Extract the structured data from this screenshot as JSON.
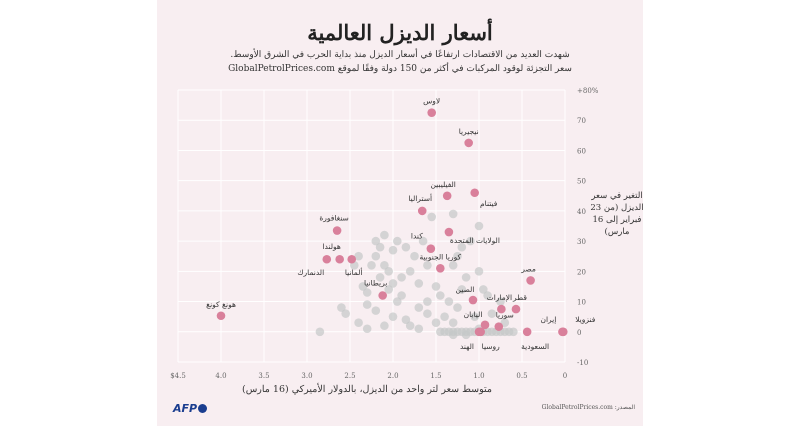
{
  "title": "أسعار الديزل العالمية",
  "subtitle_line1": "شهدت العديد من الاقتصادات ارتفاعًا في أسعار الديزل منذ بداية الحرب في الشرق الأوسط.",
  "subtitle_line2": "سعر التجزئة لوقود المركبات في أكثر من 150 دولة وفقًا لموقع GlobalPetrolPrices.com",
  "source": "المصدر: GlobalPetrolPrices.com",
  "logo": "AFP",
  "colors": {
    "background": "#f8eef1",
    "highlight": "#d9809b",
    "other": "#c4c7c7",
    "grid": "#ffffff"
  },
  "chart_data": {
    "type": "scatter",
    "xlabel": "متوسط سعر لتر واحد من الديزل، بالدولار الأميركي (16 مارس)",
    "ylabel": "التغير في سعر الديزل (من 23 فبراير إلى 16 مارس)",
    "xlim": [
      4.5,
      0
    ],
    "ylim": [
      -10,
      80
    ],
    "x_reversed": true,
    "grid": true,
    "x_ticks": [
      "$4.5",
      "4.0",
      "3.5",
      "3.0",
      "2.5",
      "2.0",
      "1.5",
      "1.0",
      "0.5",
      "0"
    ],
    "x_tick_values": [
      4.5,
      4.0,
      3.5,
      3.0,
      2.5,
      2.0,
      1.5,
      1.0,
      0.5,
      0
    ],
    "y_ticks": [
      "+80%",
      "70",
      "60",
      "50",
      "40",
      "30",
      "20",
      "10",
      "0",
      "-10"
    ],
    "y_tick_values": [
      80,
      70,
      60,
      50,
      40,
      30,
      20,
      10,
      0,
      -10
    ],
    "highlighted": [
      {
        "label": "لاوس",
        "x": 1.55,
        "y": 72.5
      },
      {
        "label": "نيجيريا",
        "x": 1.12,
        "y": 62.5
      },
      {
        "label": "الفيليبين",
        "x": 1.37,
        "y": 45
      },
      {
        "label": "فيتنام",
        "x": 1.05,
        "y": 46
      },
      {
        "label": "أستراليا",
        "x": 1.66,
        "y": 40
      },
      {
        "label": "الولايات المتحدة",
        "x": 1.35,
        "y": 33
      },
      {
        "label": "كندا",
        "x": 1.56,
        "y": 27.5
      },
      {
        "label": "كوريا الجنوبية",
        "x": 1.45,
        "y": 21
      },
      {
        "label": "مصر",
        "x": 0.4,
        "y": 17
      },
      {
        "label": "الصين",
        "x": 1.07,
        "y": 10.5
      },
      {
        "label": "الإمارات",
        "x": 0.74,
        "y": 7.5
      },
      {
        "label": "قطر",
        "x": 0.57,
        "y": 7.5
      },
      {
        "label": "اليابان",
        "x": 0.93,
        "y": 2.3
      },
      {
        "label": "سوريا",
        "x": 0.77,
        "y": 1.7
      },
      {
        "label": "روسيا",
        "x": 0.98,
        "y": 0
      },
      {
        "label": "الهند",
        "x": 1.0,
        "y": 0
      },
      {
        "label": "السعودية",
        "x": 0.44,
        "y": 0
      },
      {
        "label": "إيران",
        "x": 0.03,
        "y": 0
      },
      {
        "label": "فنزويلا",
        "x": 0.02,
        "y": 0
      },
      {
        "label": "سنغافورة",
        "x": 2.65,
        "y": 33.5
      },
      {
        "label": "هولندا",
        "x": 2.62,
        "y": 24
      },
      {
        "label": "ألمانيا",
        "x": 2.48,
        "y": 24
      },
      {
        "label": "الدنمارك",
        "x": 2.77,
        "y": 24
      },
      {
        "label": "بريطانيا",
        "x": 2.12,
        "y": 12
      },
      {
        "label": "هونغ كونغ",
        "x": 4.0,
        "y": 5.3
      }
    ],
    "others": [
      [
        1.45,
        0
      ],
      [
        1.4,
        0
      ],
      [
        1.35,
        0
      ],
      [
        1.3,
        0
      ],
      [
        1.25,
        0
      ],
      [
        1.2,
        0
      ],
      [
        1.15,
        0
      ],
      [
        1.1,
        0
      ],
      [
        1.05,
        0
      ],
      [
        0.95,
        0
      ],
      [
        0.9,
        0
      ],
      [
        0.85,
        0
      ],
      [
        0.8,
        0
      ],
      [
        0.75,
        0
      ],
      [
        0.7,
        0
      ],
      [
        0.65,
        0
      ],
      [
        0.6,
        0
      ],
      [
        1.3,
        -1
      ],
      [
        1.15,
        -1
      ],
      [
        1.0,
        1
      ],
      [
        2.85,
        0
      ],
      [
        2.6,
        8
      ],
      [
        2.55,
        6
      ],
      [
        2.4,
        3
      ],
      [
        2.3,
        1
      ],
      [
        2.2,
        30
      ],
      [
        2.15,
        28
      ],
      [
        2.1,
        32
      ],
      [
        2.2,
        25
      ],
      [
        2.1,
        22
      ],
      [
        2.05,
        20
      ],
      [
        2.15,
        18
      ],
      [
        2.0,
        16
      ],
      [
        2.05,
        14
      ],
      [
        1.9,
        12
      ],
      [
        1.95,
        10
      ],
      [
        2.0,
        5
      ],
      [
        1.85,
        4
      ],
      [
        1.8,
        2
      ],
      [
        1.7,
        1
      ],
      [
        1.9,
        18
      ],
      [
        1.8,
        20
      ],
      [
        1.7,
        16
      ],
      [
        1.75,
        25
      ],
      [
        1.6,
        22
      ],
      [
        1.65,
        30
      ],
      [
        1.55,
        38
      ],
      [
        1.5,
        15
      ],
      [
        1.45,
        12
      ],
      [
        1.35,
        10
      ],
      [
        1.25,
        8
      ],
      [
        1.2,
        14
      ],
      [
        1.15,
        18
      ],
      [
        1.3,
        22
      ],
      [
        1.25,
        25
      ],
      [
        1.2,
        28
      ],
      [
        1.1,
        30
      ],
      [
        1.0,
        35
      ],
      [
        1.0,
        20
      ],
      [
        0.95,
        14
      ],
      [
        0.9,
        12
      ],
      [
        1.05,
        5
      ],
      [
        0.85,
        6
      ],
      [
        0.7,
        3
      ],
      [
        1.3,
        39
      ],
      [
        1.6,
        10
      ],
      [
        1.7,
        8
      ],
      [
        2.3,
        9
      ],
      [
        2.45,
        22
      ],
      [
        2.0,
        27
      ],
      [
        1.95,
        30
      ],
      [
        1.85,
        28
      ],
      [
        2.3,
        13
      ],
      [
        1.4,
        5
      ],
      [
        1.5,
        3
      ],
      [
        1.6,
        6
      ],
      [
        2.2,
        7
      ],
      [
        2.1,
        2
      ],
      [
        1.3,
        3
      ],
      [
        2.4,
        25
      ],
      [
        2.25,
        22
      ],
      [
        2.35,
        15
      ],
      [
        0.75,
        10
      ]
    ]
  }
}
